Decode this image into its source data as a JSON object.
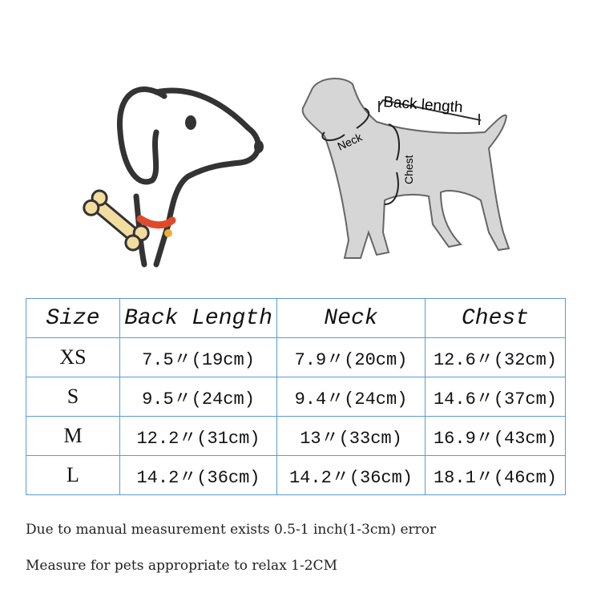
{
  "diagram": {
    "back_length_label": "Back length",
    "neck_label": "Neck",
    "chest_label": "Chest"
  },
  "table": {
    "headers": [
      "Size",
      "Back Length",
      "Neck",
      "Chest"
    ],
    "rows": [
      [
        "XS",
        "7.5〃(19cm)",
        "7.9〃(20cm)",
        "12.6〃(32cm)"
      ],
      [
        "S",
        "9.5〃(24cm)",
        "9.4〃(24cm)",
        "14.6〃(37cm)"
      ],
      [
        "M",
        "12.2〃(31cm)",
        "13〃(33cm)",
        "16.9〃(43cm)"
      ],
      [
        "L",
        "14.2〃(36cm)",
        "14.2〃(36cm)",
        "18.1〃(46cm)"
      ]
    ],
    "border_color": "#5b9bd5"
  },
  "notes": [
    "Due to manual  measurement exists  0.5-1 inch(1-3cm)  error",
    "Measure for pets appropriate to relax 1-2CM"
  ]
}
